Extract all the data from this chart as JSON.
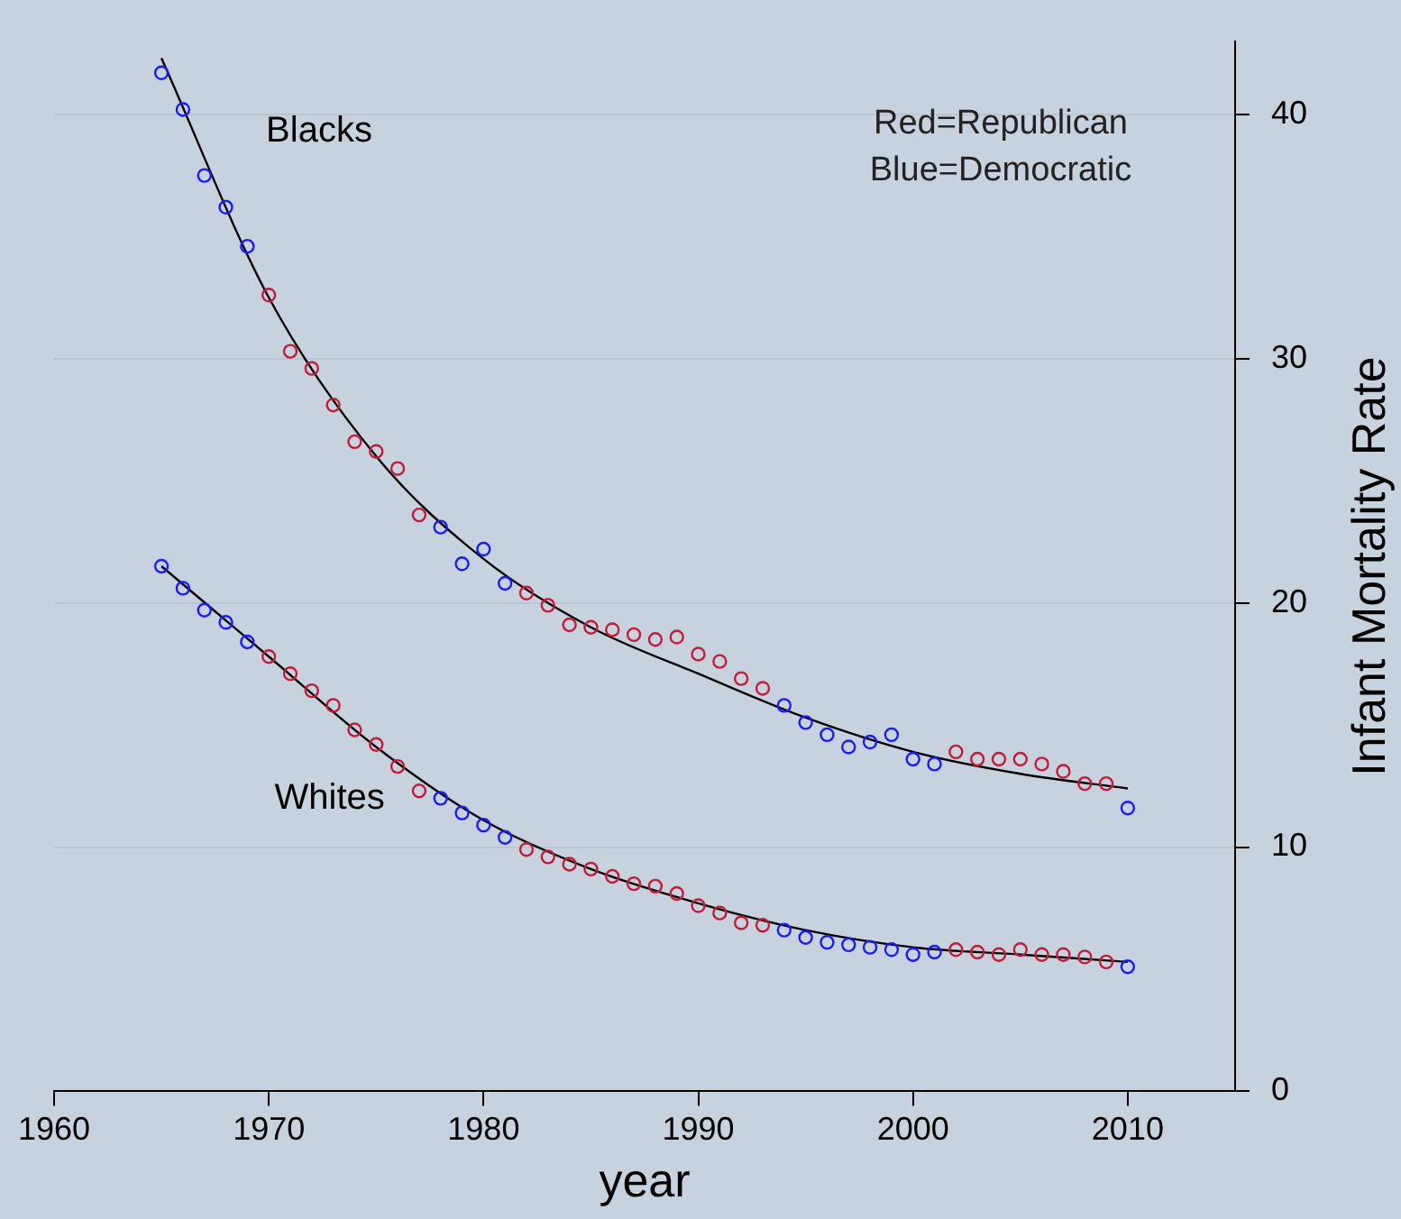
{
  "chart_data": {
    "type": "scatter",
    "xlabel": "year",
    "ylabel": "Infant Mortality Rate",
    "xlim": [
      1960,
      2015
    ],
    "xticks": [
      1960,
      1970,
      1980,
      1990,
      2000,
      2010
    ],
    "ylim": [
      0,
      43
    ],
    "yticks": [
      0,
      10,
      20,
      30,
      40
    ],
    "grid": "y",
    "legend": false,
    "annotations": [
      "Red=Republican",
      "Blue=Democratic"
    ],
    "series": [
      {
        "name": "Blacks",
        "marker": "circle",
        "x": [
          1965,
          1966,
          1967,
          1968,
          1969,
          1970,
          1971,
          1972,
          1973,
          1974,
          1975,
          1976,
          1977,
          1978,
          1979,
          1980,
          1981,
          1982,
          1983,
          1984,
          1985,
          1986,
          1987,
          1988,
          1989,
          1990,
          1991,
          1992,
          1993,
          1994,
          1995,
          1996,
          1997,
          1998,
          1999,
          2000,
          2001,
          2002,
          2003,
          2004,
          2005,
          2006,
          2007,
          2008,
          2009,
          2010
        ],
        "values": [
          41.7,
          40.2,
          37.5,
          36.2,
          34.6,
          32.6,
          30.3,
          29.6,
          28.1,
          26.6,
          26.2,
          25.5,
          23.6,
          23.1,
          21.6,
          22.2,
          20.8,
          20.4,
          19.9,
          19.1,
          19.0,
          18.9,
          18.7,
          18.5,
          18.6,
          17.9,
          17.6,
          16.9,
          16.5,
          15.8,
          15.1,
          14.6,
          14.1,
          14.3,
          14.6,
          13.6,
          13.4,
          13.9,
          13.6,
          13.6,
          13.6,
          13.4,
          13.1,
          12.6,
          12.6,
          11.6
        ],
        "colors": [
          "#1a1aff",
          "#1a1aff",
          "#1a1aff",
          "#1a1aff",
          "#1a1aff",
          "#c8193c",
          "#c8193c",
          "#c8193c",
          "#c8193c",
          "#c8193c",
          "#c8193c",
          "#c8193c",
          "#c8193c",
          "#1a1aff",
          "#1a1aff",
          "#1a1aff",
          "#1a1aff",
          "#c8193c",
          "#c8193c",
          "#c8193c",
          "#c8193c",
          "#c8193c",
          "#c8193c",
          "#c8193c",
          "#c8193c",
          "#c8193c",
          "#c8193c",
          "#c8193c",
          "#c8193c",
          "#1a1aff",
          "#1a1aff",
          "#1a1aff",
          "#1a1aff",
          "#1a1aff",
          "#1a1aff",
          "#1a1aff",
          "#1a1aff",
          "#c8193c",
          "#c8193c",
          "#c8193c",
          "#c8193c",
          "#c8193c",
          "#c8193c",
          "#c8193c",
          "#c8193c",
          "#1a1aff"
        ]
      },
      {
        "name": "Whites",
        "marker": "circle",
        "x": [
          1965,
          1966,
          1967,
          1968,
          1969,
          1970,
          1971,
          1972,
          1973,
          1974,
          1975,
          1976,
          1977,
          1978,
          1979,
          1980,
          1981,
          1982,
          1983,
          1984,
          1985,
          1986,
          1987,
          1988,
          1989,
          1990,
          1991,
          1992,
          1993,
          1994,
          1995,
          1996,
          1997,
          1998,
          1999,
          2000,
          2001,
          2002,
          2003,
          2004,
          2005,
          2006,
          2007,
          2008,
          2009,
          2010
        ],
        "values": [
          21.5,
          20.6,
          19.7,
          19.2,
          18.4,
          17.8,
          17.1,
          16.4,
          15.8,
          14.8,
          14.2,
          13.3,
          12.3,
          12.0,
          11.4,
          10.9,
          10.4,
          9.9,
          9.6,
          9.3,
          9.1,
          8.8,
          8.5,
          8.4,
          8.1,
          7.6,
          7.3,
          6.9,
          6.8,
          6.6,
          6.3,
          6.1,
          6.0,
          5.9,
          5.8,
          5.6,
          5.7,
          5.8,
          5.7,
          5.6,
          5.8,
          5.6,
          5.6,
          5.5,
          5.3,
          5.1
        ],
        "colors": [
          "#1a1aff",
          "#1a1aff",
          "#1a1aff",
          "#1a1aff",
          "#1a1aff",
          "#c8193c",
          "#c8193c",
          "#c8193c",
          "#c8193c",
          "#c8193c",
          "#c8193c",
          "#c8193c",
          "#c8193c",
          "#1a1aff",
          "#1a1aff",
          "#1a1aff",
          "#1a1aff",
          "#c8193c",
          "#c8193c",
          "#c8193c",
          "#c8193c",
          "#c8193c",
          "#c8193c",
          "#c8193c",
          "#c8193c",
          "#c8193c",
          "#c8193c",
          "#c8193c",
          "#c8193c",
          "#1a1aff",
          "#1a1aff",
          "#1a1aff",
          "#1a1aff",
          "#1a1aff",
          "#1a1aff",
          "#1a1aff",
          "#1a1aff",
          "#c8193c",
          "#c8193c",
          "#c8193c",
          "#c8193c",
          "#c8193c",
          "#c8193c",
          "#c8193c",
          "#c8193c",
          "#1a1aff"
        ]
      },
      {
        "type": "line",
        "color": "#000000",
        "x": [
          1965,
          1970,
          1975,
          1980,
          1985,
          1990,
          1995,
          2000,
          2005,
          2010
        ],
        "values": [
          42.3,
          32.5,
          26.0,
          21.8,
          19.0,
          17.1,
          15.3,
          13.9,
          13.0,
          12.4
        ]
      },
      {
        "type": "line",
        "color": "#000000",
        "x": [
          1965,
          1970,
          1975,
          1980,
          1985,
          1990,
          1995,
          2000,
          2005,
          2010
        ],
        "values": [
          21.5,
          17.8,
          14.1,
          11.1,
          9.1,
          7.7,
          6.6,
          5.9,
          5.6,
          5.3
        ]
      }
    ]
  }
}
